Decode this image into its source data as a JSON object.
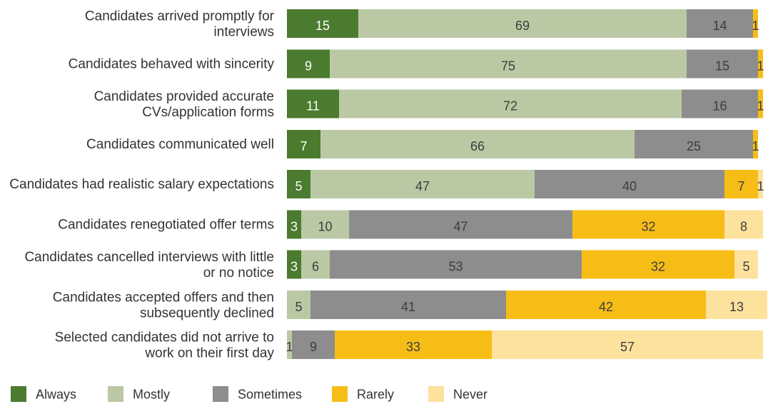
{
  "chart_data": {
    "type": "bar",
    "orientation": "horizontal",
    "stacked": true,
    "xlim": [
      0,
      100
    ],
    "grid": false,
    "legend_position": "bottom-left",
    "categories": [
      "Candidates arrived promptly for interviews",
      "Candidates behaved with sincerity",
      "Candidates provided accurate CVs/application forms",
      "Candidates communicated well",
      "Candidates had realistic salary expectations",
      "Candidates renegotiated offer terms",
      "Candidates cancelled interviews with little or no notice",
      "Candidates accepted offers and then subsequently declined",
      "Selected candidates did not arrive to work on their first day"
    ],
    "series": [
      {
        "name": "Always",
        "color": "#4b7b2e",
        "values": [
          15,
          9,
          11,
          7,
          5,
          3,
          3,
          0,
          0
        ]
      },
      {
        "name": "Mostly",
        "color": "#bac9a4",
        "values": [
          69,
          75,
          72,
          66,
          47,
          10,
          6,
          5,
          1
        ]
      },
      {
        "name": "Sometimes",
        "color": "#8d8d8d",
        "values": [
          14,
          15,
          16,
          25,
          40,
          47,
          53,
          41,
          9
        ]
      },
      {
        "name": "Rarely",
        "color": "#f7bd17",
        "values": [
          1,
          1,
          1,
          1,
          7,
          32,
          32,
          42,
          33
        ]
      },
      {
        "name": "Never",
        "color": "#fde29d",
        "values": [
          0,
          0,
          0,
          0,
          1,
          8,
          5,
          13,
          57
        ]
      }
    ]
  }
}
